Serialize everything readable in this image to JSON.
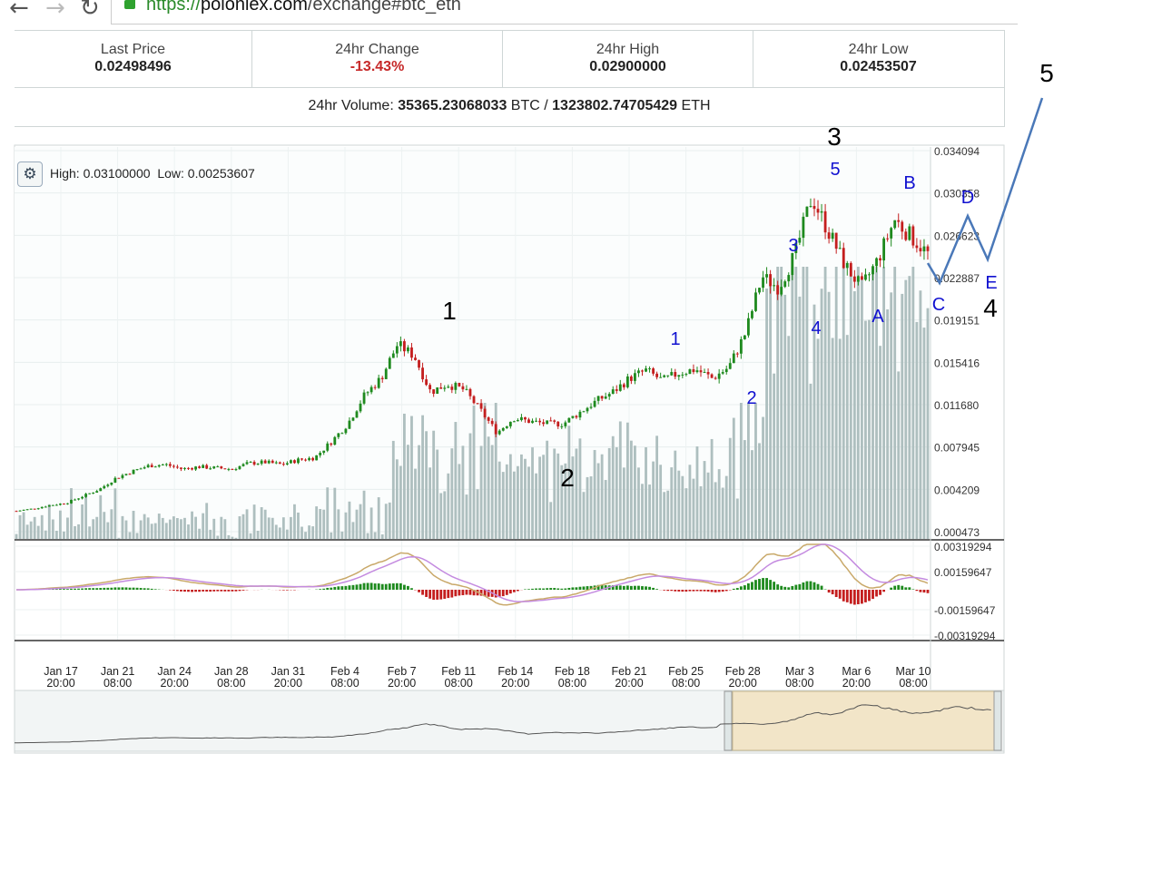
{
  "browser": {
    "back_icon": "back-arrow-icon",
    "forward_icon": "forward-arrow-icon",
    "reload_icon": "reload-icon",
    "url_scheme": "https://",
    "url_host": "poloniex.com",
    "url_path": "/exchange#btc_eth"
  },
  "stats": {
    "last_price_label": "Last Price",
    "last_price": "0.02498496",
    "change_label": "24hr Change",
    "change": "-13.43%",
    "high_label": "24hr High",
    "high": "0.02900000",
    "low_label": "24hr Low",
    "low": "0.02453507",
    "volume_label": "24hr Volume:",
    "volume_btc": "35365.23068033",
    "volume_btc_unit": "BTC /",
    "volume_eth": "1323802.74705429",
    "volume_eth_unit": "ETH"
  },
  "chart_header": {
    "high_label": "High:",
    "high_value": "0.03100000",
    "low_label": "Low:",
    "low_value": "0.00253607",
    "settings_icon": "gear-icon"
  },
  "colors": {
    "up": "#1e8a1e",
    "down": "#c41e1e",
    "volume": "#aebfbf",
    "macd_line": "#c9a96a",
    "signal_line": "#c48be0",
    "wave_line": "#4a78b8",
    "blue_label": "#1010d0"
  },
  "chart_data": {
    "type": "candlestick",
    "price_axis_ticks": [
      "0.034094",
      "0.030358",
      "0.026623",
      "0.022887",
      "0.019151",
      "0.015416",
      "0.011680",
      "0.007945",
      "0.004209",
      "0.000473"
    ],
    "indicator_axis_ticks": [
      "0.00319294",
      "0.00159647",
      "-0.00159647",
      "-0.00319294"
    ],
    "x_tick_labels": [
      {
        "date": "Jan 17",
        "time": "20:00"
      },
      {
        "date": "Jan 21",
        "time": "08:00"
      },
      {
        "date": "Jan 24",
        "time": "20:00"
      },
      {
        "date": "Jan 28",
        "time": "08:00"
      },
      {
        "date": "Jan 31",
        "time": "20:00"
      },
      {
        "date": "Feb 4",
        "time": "08:00"
      },
      {
        "date": "Feb 7",
        "time": "20:00"
      },
      {
        "date": "Feb 11",
        "time": "08:00"
      },
      {
        "date": "Feb 14",
        "time": "20:00"
      },
      {
        "date": "Feb 18",
        "time": "08:00"
      },
      {
        "date": "Feb 21",
        "time": "20:00"
      },
      {
        "date": "Feb 25",
        "time": "08:00"
      },
      {
        "date": "Feb 28",
        "time": "20:00"
      },
      {
        "date": "Mar 3",
        "time": "08:00"
      },
      {
        "date": "Mar 6",
        "time": "20:00"
      },
      {
        "date": "Mar 10",
        "time": "08:00"
      }
    ],
    "price_path": [
      0.0023,
      0.0025,
      0.0028,
      0.003,
      0.0036,
      0.0042,
      0.0052,
      0.0058,
      0.0063,
      0.0064,
      0.006,
      0.0062,
      0.0061,
      0.006,
      0.0065,
      0.0066,
      0.0064,
      0.0068,
      0.007,
      0.0084,
      0.01,
      0.0125,
      0.014,
      0.017,
      0.016,
      0.0128,
      0.0135,
      0.013,
      0.0112,
      0.0092,
      0.0105,
      0.0102,
      0.01,
      0.01,
      0.011,
      0.012,
      0.0128,
      0.014,
      0.0147,
      0.0138,
      0.0145,
      0.0148,
      0.014,
      0.015,
      0.018,
      0.023,
      0.022,
      0.025,
      0.03,
      0.027,
      0.024,
      0.022,
      0.0245,
      0.028,
      0.0265,
      0.025
    ],
    "annotations": [
      {
        "text": "1",
        "color": "black"
      },
      {
        "text": "2",
        "color": "black"
      },
      {
        "text": "3",
        "color": "black"
      },
      {
        "text": "4",
        "color": "black"
      },
      {
        "text": "5",
        "color": "black"
      },
      {
        "text": "1",
        "color": "blue"
      },
      {
        "text": "2",
        "color": "blue"
      },
      {
        "text": "3",
        "color": "blue"
      },
      {
        "text": "4",
        "color": "blue"
      },
      {
        "text": "5",
        "color": "blue"
      },
      {
        "text": "A",
        "color": "blue"
      },
      {
        "text": "B",
        "color": "blue"
      },
      {
        "text": "C",
        "color": "blue"
      },
      {
        "text": "D",
        "color": "blue"
      },
      {
        "text": "E",
        "color": "blue"
      }
    ]
  }
}
